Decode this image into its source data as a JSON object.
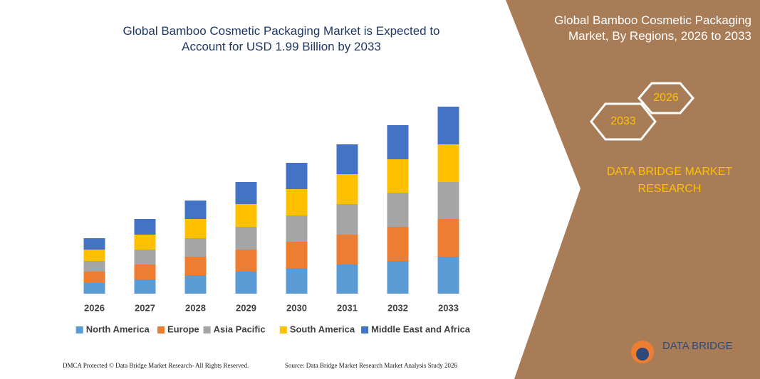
{
  "chart_data": {
    "type": "bar",
    "stacked": true,
    "title": "Global Bamboo Cosmetic Packaging Market is Expected to Account for USD 1.99 Billion by 2033",
    "categories": [
      "2026",
      "2027",
      "2028",
      "2029",
      "2030",
      "2031",
      "2032",
      "2033"
    ],
    "series": [
      {
        "name": "North America",
        "color": "#5b9bd5",
        "values": [
          15,
          20,
          26,
          31,
          36,
          41,
          46,
          52
        ]
      },
      {
        "name": "Europe",
        "color": "#ed7d31",
        "values": [
          16,
          21,
          26,
          31,
          37,
          42,
          48,
          53
        ]
      },
      {
        "name": "Asia Pacific",
        "color": "#a5a5a5",
        "values": [
          15,
          21,
          26,
          32,
          37,
          43,
          48,
          52
        ]
      },
      {
        "name": "South America",
        "color": "#ffc000",
        "values": [
          16,
          21,
          27,
          32,
          37,
          42,
          47,
          53
        ]
      },
      {
        "name": "Middle East and Africa",
        "color": "#4472c4",
        "values": [
          16,
          22,
          26,
          31,
          37,
          42,
          48,
          53
        ]
      }
    ],
    "ylim": [
      0,
      270
    ],
    "grid": false,
    "legend": "bottom"
  },
  "panel": {
    "title": "Global Bamboo Cosmetic Packaging Market, By Regions, 2026 to 2033",
    "hex_start": "2026",
    "hex_end": "2033",
    "brand": "DATA BRIDGE MARKET RESEARCH",
    "logo": "DATA BRIDGE"
  },
  "footer": {
    "left": "DMCA Protected © Data Bridge Market Research- All Rights Reserved.",
    "right": "Source: Data Bridge Market Research Market Analysis Study 2026"
  }
}
